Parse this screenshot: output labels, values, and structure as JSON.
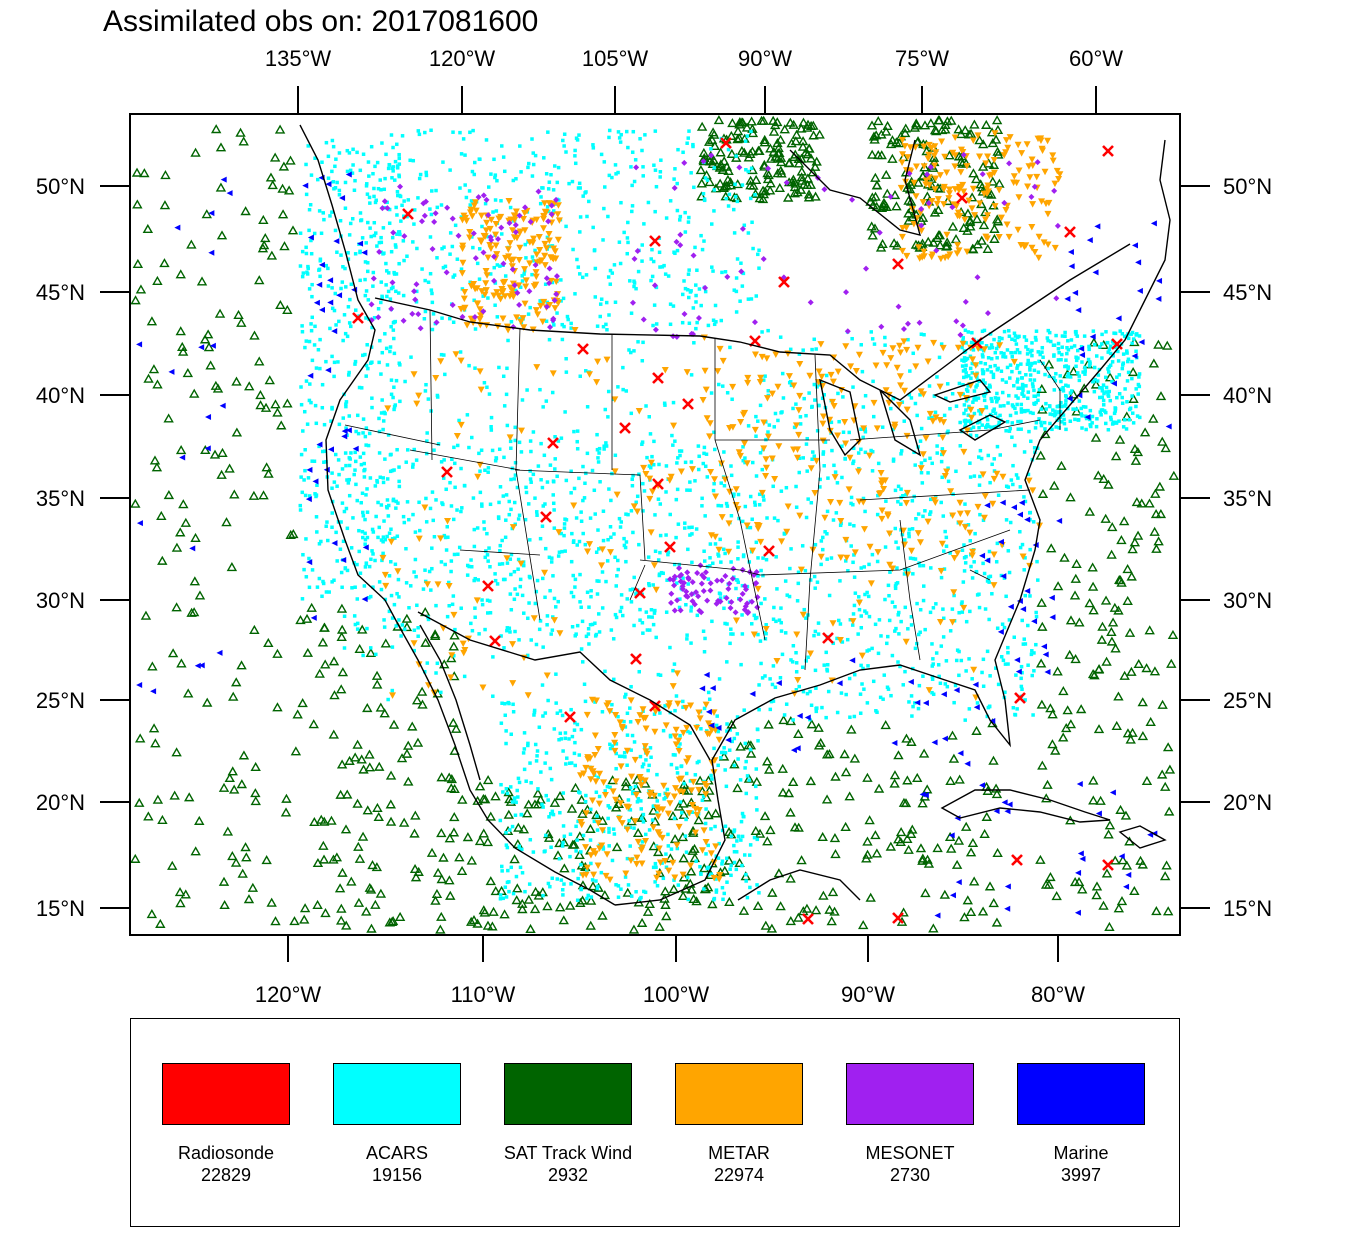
{
  "title": "Assimilated obs on: 2017081600",
  "top_lon_labels": [
    "135°W",
    "120°W",
    "105°W",
    "90°W",
    "75°W",
    "60°W"
  ],
  "bottom_lon_labels": [
    "120°W",
    "110°W",
    "100°W",
    "90°W",
    "80°W"
  ],
  "lat_labels": [
    "50°N",
    "45°N",
    "40°N",
    "35°N",
    "30°N",
    "25°N",
    "20°N",
    "15°N"
  ],
  "colors": {
    "radiosonde": "#ff0000",
    "acars": "#00ffff",
    "sat_track_wind": "#006400",
    "metar": "#ffa500",
    "mesonet": "#a020f0",
    "marine": "#0000ff",
    "coast": "#000000"
  },
  "legend": [
    {
      "name": "Radiosonde",
      "count": "22829",
      "color": "#ff0000"
    },
    {
      "name": "ACARS",
      "count": "19156",
      "color": "#00ffff"
    },
    {
      "name": "SAT Track Wind",
      "count": "2932",
      "color": "#006400"
    },
    {
      "name": "METAR",
      "count": "22974",
      "color": "#ffa500"
    },
    {
      "name": "MESONET",
      "count": "2730",
      "color": "#a020f0"
    },
    {
      "name": "Marine",
      "count": "3997",
      "color": "#0000ff"
    }
  ]
}
